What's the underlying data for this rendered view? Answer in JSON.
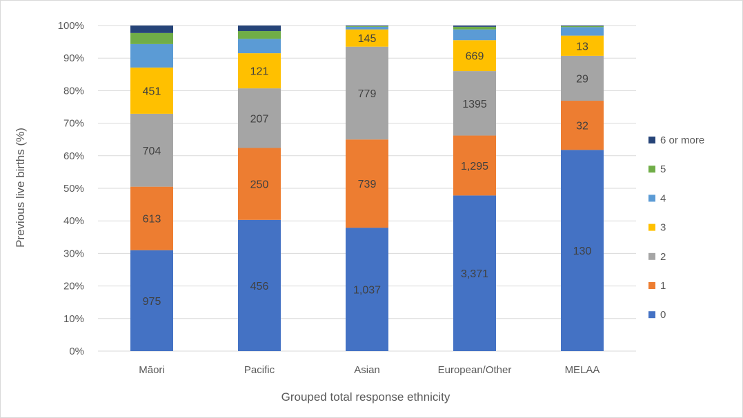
{
  "chart_data": {
    "type": "bar",
    "stacked": true,
    "percent_stacked": true,
    "title": "",
    "xlabel": "Grouped total response ethnicity",
    "ylabel": "Previous live births (%)",
    "ylim": [
      0,
      100
    ],
    "y_ticks": [
      "0%",
      "10%",
      "20%",
      "30%",
      "40%",
      "50%",
      "60%",
      "70%",
      "80%",
      "90%",
      "100%"
    ],
    "grid": true,
    "legend_position": "right",
    "categories": [
      "Māori",
      "Pacific",
      "Asian",
      "European/Other",
      "MELAA"
    ],
    "series": [
      {
        "name": "0",
        "color": "#4472C4",
        "percent": [
          31.0,
          40.3,
          37.9,
          47.8,
          61.8
        ],
        "labels": [
          "975",
          "456",
          "1,037",
          "3,371",
          "130"
        ]
      },
      {
        "name": "1",
        "color": "#ED7D31",
        "percent": [
          19.5,
          22.1,
          27.1,
          18.4,
          15.1
        ],
        "labels": [
          "613",
          "250",
          "739",
          "1,295",
          "32"
        ]
      },
      {
        "name": "2",
        "color": "#A5A5A5",
        "percent": [
          22.4,
          18.3,
          28.5,
          19.8,
          13.8
        ],
        "labels": [
          "704",
          "207",
          "779",
          "1395",
          "29"
        ]
      },
      {
        "name": "3",
        "color": "#FFC000",
        "percent": [
          14.2,
          10.8,
          5.3,
          9.5,
          6.2
        ],
        "labels": [
          "451",
          "121",
          "145",
          "669",
          "13"
        ]
      },
      {
        "name": "4",
        "color": "#5B9BD5",
        "percent": [
          7.2,
          4.4,
          0.8,
          3.3,
          2.6
        ],
        "labels": [
          "",
          "",
          "",
          "",
          ""
        ]
      },
      {
        "name": "5",
        "color": "#70AD47",
        "percent": [
          3.4,
          2.4,
          0.2,
          0.8,
          0.3
        ],
        "labels": [
          "",
          "",
          "",
          "",
          ""
        ]
      },
      {
        "name": "6 or more",
        "color": "#264478",
        "percent": [
          2.3,
          1.7,
          0.2,
          0.4,
          0.2
        ],
        "labels": [
          "",
          "",
          "",
          "",
          ""
        ]
      }
    ]
  }
}
